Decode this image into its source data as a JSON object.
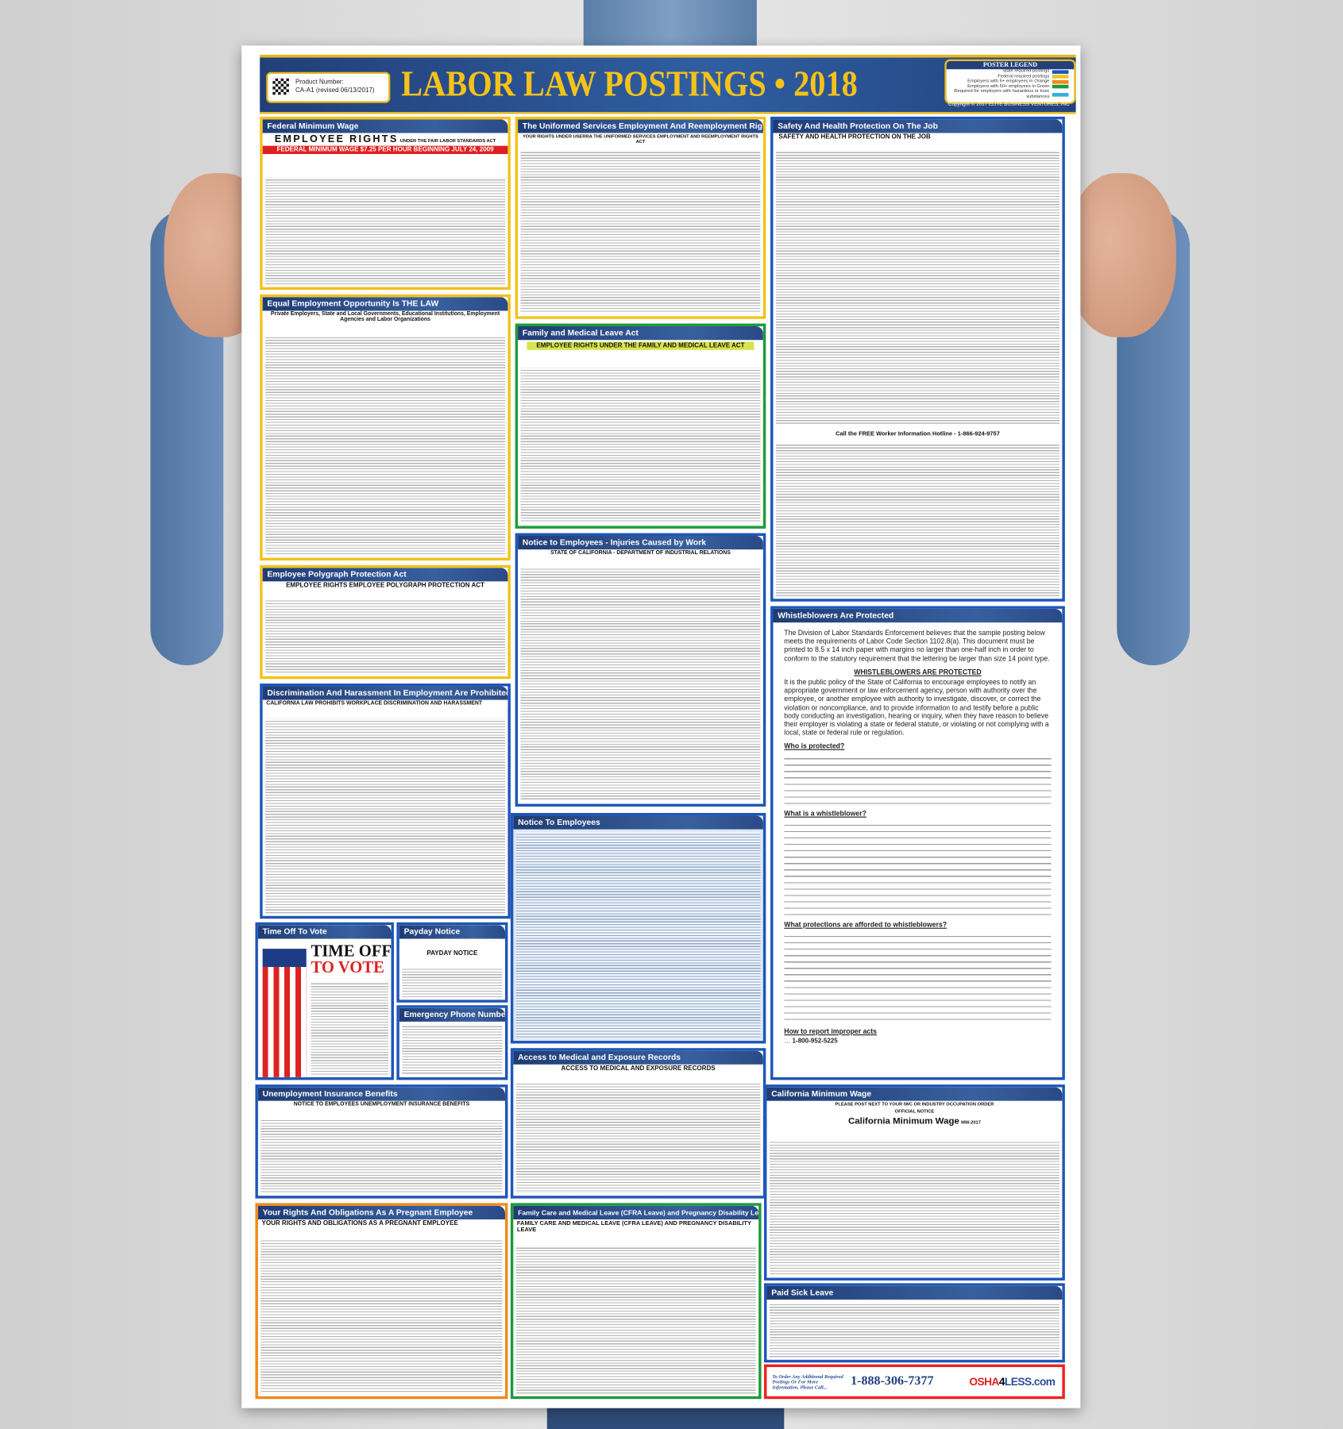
{
  "poster": {
    "title": "LABOR LAW POSTINGS • 2018",
    "product_number_label": "Product Number:",
    "product_number": "CA-A1 (revised 06/13/2017)",
    "legend": {
      "title": "POSTER LEGEND",
      "items": [
        {
          "label": "State required postings",
          "color": "#1e56b8"
        },
        {
          "label": "Federal required postings",
          "color": "#f3c21a"
        },
        {
          "label": "Employers with 5+ employees in Orange",
          "color": "#f08a1c"
        },
        {
          "label": "Employers with 50+ employees in Green",
          "color": "#1f9a3a"
        },
        {
          "label": "Required for employers with hazardous or toxic substances",
          "color": "#39a9e0"
        }
      ]
    },
    "copyright": "Copyright © 2017 ELITE BUSINESS VENTURES, INC"
  },
  "sections": {
    "federal_min_wage": {
      "title": "Federal Minimum Wage",
      "sub": "EMPLOYEE RIGHTS",
      "sub2": "UNDER THE FAIR LABOR STANDARDS ACT",
      "bar": "FEDERAL MINIMUM WAGE  $7.25 PER HOUR  BEGINNING JULY 24, 2009"
    },
    "eeo": {
      "title": "Equal Employment Opportunity Is THE LAW",
      "sub": "Private Employers, State and Local Governments, Educational Institutions, Employment Agencies and Labor Organizations"
    },
    "polygraph": {
      "title": "Employee Polygraph Protection Act",
      "sub": "EMPLOYEE RIGHTS  EMPLOYEE POLYGRAPH PROTECTION ACT"
    },
    "discrimination": {
      "title": "Discrimination And Harassment In Employment Are Prohibited By Law",
      "sub": "CALIFORNIA LAW PROHIBITS WORKPLACE DISCRIMINATION AND HARASSMENT"
    },
    "vote": {
      "title": "Time Off To Vote",
      "big1": "TIME OFF",
      "big2": "TO VOTE"
    },
    "payday": {
      "title": "Payday Notice",
      "sub": "PAYDAY NOTICE"
    },
    "emergency": {
      "title": "Emergency Phone Numbers"
    },
    "unemployment": {
      "title": "Unemployment Insurance Benefits",
      "sub": "NOTICE TO EMPLOYEES UNEMPLOYMENT INSURANCE BENEFITS"
    },
    "pregnant": {
      "title": "Your Rights And Obligations As A Pregnant Employee",
      "sub": "YOUR RIGHTS AND OBLIGATIONS AS A PREGNANT EMPLOYEE"
    },
    "userra": {
      "title": "The Uniformed Services Employment And Reemployment Rights Act",
      "sub": "YOUR RIGHTS UNDER USERRA THE UNIFORMED SERVICES EMPLOYMENT AND REEMPLOYMENT RIGHTS ACT"
    },
    "fmla": {
      "title": "Family and Medical Leave Act",
      "sub": "EMPLOYEE RIGHTS UNDER THE FAMILY AND MEDICAL LEAVE ACT"
    },
    "injuries": {
      "title": "Notice to Employees - Injuries Caused by Work",
      "sub": "STATE OF CALIFORNIA - DEPARTMENT OF INDUSTRIAL RELATIONS"
    },
    "notice_employees": {
      "title": "Notice To Employees"
    },
    "medical_records": {
      "title": "Access to Medical and Exposure Records",
      "sub": "ACCESS TO MEDICAL AND EXPOSURE RECORDS"
    },
    "cfra": {
      "title": "Family Care and Medical Leave (CFRA Leave) and Pregnancy Disability Leave",
      "sub": "FAMILY CARE AND MEDICAL LEAVE (CFRA LEAVE) AND PREGNANCY DISABILITY LEAVE"
    },
    "safety": {
      "title": "Safety And Health Protection On The Job",
      "sub": "SAFETY AND HEALTH PROTECTION ON THE JOB",
      "hotline": "Call the FREE Worker Information Hotline - 1-866-924-9757"
    },
    "whistleblowers": {
      "title": "Whistleblowers Are Protected",
      "intro": "The Division of Labor Standards Enforcement believes that the sample posting below meets the requirements of Labor Code Section 1102.8(a). This document must be printed to 8.5 x 14 inch paper with margins no larger than one-half inch in order to conform to the statutory requirement that the lettering be larger than size 14 point type.",
      "heading": "WHISTLEBLOWERS ARE PROTECTED",
      "p1": "It is the public policy of the State of California to encourage employees to notify an appropriate government or law enforcement agency, person with authority over the employee, or another employee with authority to investigate, discover, or correct the violation or noncompliance, and to provide information to and testify before a public body conducting an investigation, hearing or inquiry, when they have reason to believe their employer is violating a state or federal statute, or violating or not complying with a local, state or federal rule or regulation.",
      "q1": "Who is protected?",
      "q2": "What is a whistleblower?",
      "q3": "What protections are afforded to whistleblowers?",
      "q4": "How to report improper acts",
      "hotline": "1-800-952-5225"
    },
    "ca_min_wage": {
      "title": "California Minimum Wage",
      "sub": "PLEASE POST NEXT TO YOUR IWC OR INDUSTRY OCCUPATION ORDER",
      "sub2": "OFFICIAL NOTICE",
      "heading": "California Minimum Wage",
      "code": "MW-2017"
    },
    "paid_sick": {
      "title": "Paid Sick Leave"
    }
  },
  "footer": {
    "order_text": "To Order Any Additional Required Postings Or For More Information, Please Call...",
    "phone": "1-888-306-7377",
    "brand_a": "OSHA",
    "brand_b": "4",
    "brand_c": "LESS.com"
  }
}
